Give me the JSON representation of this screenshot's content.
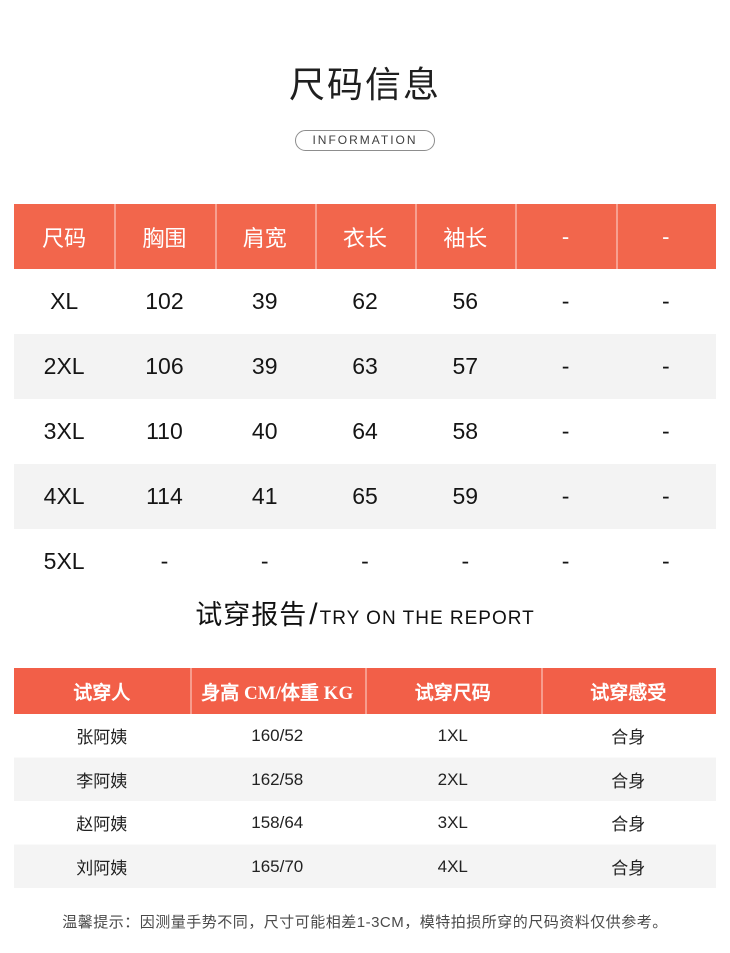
{
  "header": {
    "title": "尺码信息",
    "badge": "INFORMATION"
  },
  "colors": {
    "size_header_bg": "#f2664c",
    "tryon_header_bg": "#f25f48",
    "alt_row_bg": "#f3f3f3",
    "header_text": "#ffffff"
  },
  "size_table": {
    "headers": [
      "尺码",
      "胸围",
      "肩宽",
      "衣长",
      "袖长",
      "-",
      "-"
    ],
    "rows": [
      [
        "XL",
        "102",
        "39",
        "62",
        "56",
        "-",
        "-"
      ],
      [
        "2XL",
        "106",
        "39",
        "63",
        "57",
        "-",
        "-"
      ],
      [
        "3XL",
        "110",
        "40",
        "64",
        "58",
        "-",
        "-"
      ],
      [
        "4XL",
        "114",
        "41",
        "65",
        "59",
        "-",
        "-"
      ],
      [
        "5XL",
        "-",
        "-",
        "-",
        "-",
        "-",
        "-"
      ]
    ]
  },
  "tryon_section": {
    "title_cn": "试穿报告",
    "slash": "/",
    "title_en": "TRY ON THE REPORT"
  },
  "tryon_table": {
    "headers": [
      "试穿人",
      "身高 CM/体重 KG",
      "试穿尺码",
      "试穿感受"
    ],
    "rows": [
      [
        "张阿姨",
        "160/52",
        "1XL",
        "合身"
      ],
      [
        "李阿姨",
        "162/58",
        "2XL",
        "合身"
      ],
      [
        "赵阿姨",
        "158/64",
        "3XL",
        "合身"
      ],
      [
        "刘阿姨",
        "165/70",
        "4XL",
        "合身"
      ]
    ]
  },
  "footer": {
    "tip": "温馨提示：因测量手势不同，尺寸可能相差1-3CM，模特拍损所穿的尺码资料仅供参考。"
  }
}
